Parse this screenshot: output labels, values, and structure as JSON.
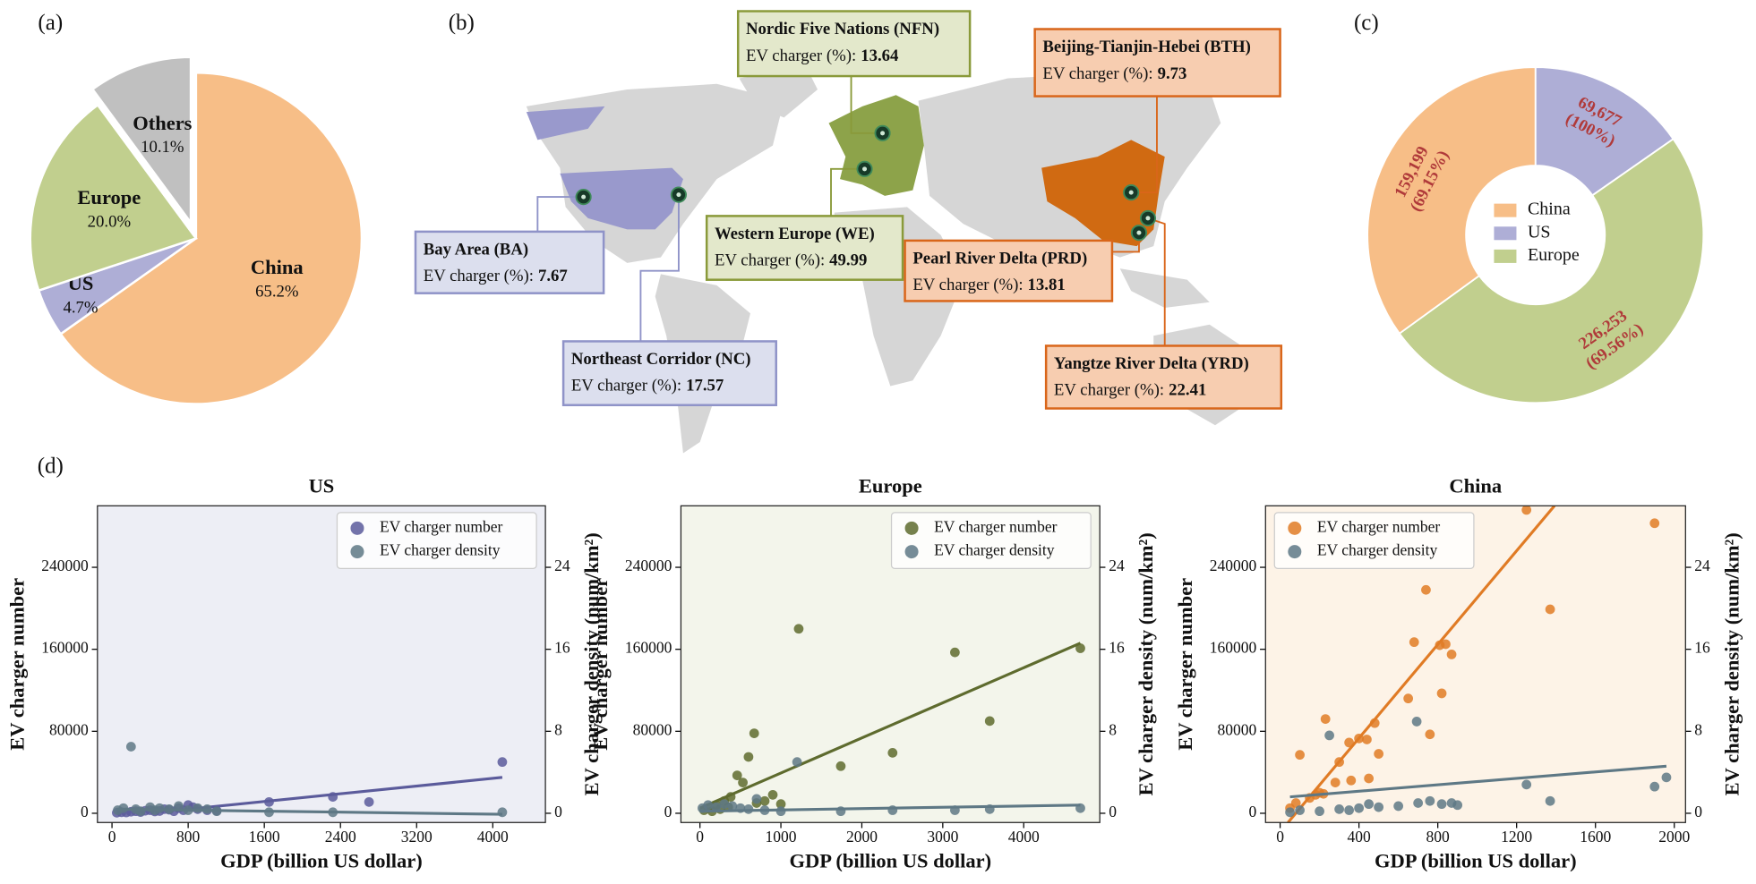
{
  "chart_data": [
    {
      "type": "pie",
      "panel": "(a)",
      "categories": [
        "China",
        "US",
        "Europe",
        "Others"
      ],
      "values": [
        65.2,
        4.7,
        20.0,
        10.1
      ],
      "value_labels": [
        "65.2%",
        "4.7%",
        "20.0%",
        "10.1%"
      ],
      "colors": [
        "#f7be87",
        "#aeaed6",
        "#c1cf8e",
        "#c0c0c0"
      ],
      "explode": [
        0,
        0,
        0,
        0.1
      ]
    },
    {
      "type": "map",
      "panel": "(b)",
      "regions": [
        {
          "name": "Nordic Five Nations (NFN)",
          "label": "EV charger (%):",
          "value": 13.64,
          "color": "#8a9a3a",
          "box_fill": "#e3e8cb"
        },
        {
          "name": "Beijing-Tianjin-Hebei (BTH)",
          "label": "EV charger (%):",
          "value": 9.73,
          "color": "#d9661a",
          "box_fill": "#f7cdb0"
        },
        {
          "name": "Bay Area (BA)",
          "label": "EV charger (%):",
          "value": 7.67,
          "color": "#8f93c8",
          "box_fill": "#dcdfee"
        },
        {
          "name": "Western Europe (WE)",
          "label": "EV charger (%):",
          "value": 49.99,
          "color": "#8a9a3a",
          "box_fill": "#e3e8cb"
        },
        {
          "name": "Pearl River Delta (PRD)",
          "label": "EV charger (%):",
          "value": 13.81,
          "color": "#d9661a",
          "box_fill": "#f7cdb0"
        },
        {
          "name": "Northeast Corridor (NC)",
          "label": "EV charger (%):",
          "value": 17.57,
          "color": "#8f93c8",
          "box_fill": "#dcdfee"
        },
        {
          "name": "Yangtze River Delta (YRD)",
          "label": "EV charger (%):",
          "value": 22.41,
          "color": "#d9661a",
          "box_fill": "#f7cdb0"
        }
      ]
    },
    {
      "type": "donut",
      "panel": "(c)",
      "categories": [
        "China",
        "US",
        "Europe"
      ],
      "values": [
        159199,
        69677,
        226253
      ],
      "value_labels": [
        "159,199",
        "69,677",
        "226,253"
      ],
      "percent_labels": [
        "(69.15%)",
        "(100%)",
        "(69.56%)"
      ],
      "colors": [
        "#f7be87",
        "#aeaed6",
        "#c1cf8e"
      ],
      "label_color": "#b03a3a",
      "order": [
        "US",
        "Europe",
        "China"
      ]
    },
    {
      "type": "scatter",
      "panel": "(d)",
      "title": "US",
      "xlabel": "GDP (billion US dollar)",
      "ylabel": "EV charger number",
      "y2label": "EV charger density (num/km²)",
      "background": "#edeef5",
      "legend": "upper right",
      "xlim": [
        -153,
        4553
      ],
      "ylim": [
        -9000,
        300000
      ],
      "y2lim": [
        -0.9,
        30
      ],
      "xticks": [
        0,
        800,
        1600,
        2400,
        3200,
        4000
      ],
      "yticks": [
        0,
        80000,
        160000,
        240000
      ],
      "y2ticks": [
        0,
        8,
        16,
        24
      ],
      "series": [
        {
          "name": "EV charger number",
          "color": "#5b5b9b",
          "x": [
            50,
            100,
            150,
            200,
            250,
            300,
            350,
            400,
            450,
            500,
            550,
            600,
            650,
            700,
            750,
            800,
            850,
            900,
            1000,
            1100,
            1650,
            2320,
            2700,
            4100
          ],
          "values": [
            500,
            1000,
            800,
            1500,
            2000,
            1200,
            2500,
            3000,
            1800,
            2200,
            4000,
            3500,
            2000,
            5000,
            3000,
            8000,
            6000,
            4000,
            3000,
            2500,
            11000,
            16000,
            11000,
            50000
          ],
          "fit_x": [
            800,
            4100
          ],
          "fit_values": [
            4000,
            35000
          ]
        },
        {
          "name": "EV charger density",
          "color": "#5e7885",
          "axis": "y2",
          "x": [
            60,
            120,
            200,
            250,
            300,
            400,
            450,
            500,
            600,
            700,
            800,
            900,
            1000,
            1100,
            1650,
            2320,
            4100
          ],
          "values": [
            0.3,
            0.5,
            6.5,
            0.4,
            0.2,
            0.6,
            0.3,
            0.5,
            0.4,
            0.7,
            0.3,
            0.5,
            0.4,
            0.2,
            0.1,
            0.1,
            0.1
          ],
          "fit_x": [
            50,
            4100
          ],
          "fit_values": [
            0.4,
            -0.1
          ]
        }
      ]
    },
    {
      "type": "scatter",
      "title": "Europe",
      "xlabel": "GDP (billion US dollar)",
      "ylabel": "EV charger number",
      "y2label": "EV charger density (num/km²)",
      "background": "#f3f5eb",
      "legend": "upper right",
      "xlim": [
        -235,
        4940
      ],
      "ylim": [
        -9000,
        300000
      ],
      "y2lim": [
        -0.9,
        30
      ],
      "xticks": [
        0,
        1000,
        2000,
        3000,
        4000
      ],
      "yticks": [
        0,
        80000,
        160000,
        240000
      ],
      "y2ticks": [
        0,
        8,
        16,
        24
      ],
      "series": [
        {
          "name": "EV charger number",
          "color": "#5e6b2e",
          "x": [
            1220,
            3150,
            4700,
            3580,
            670,
            600,
            460,
            530,
            380,
            2380,
            1740,
            900,
            300,
            200,
            100,
            50,
            150,
            250,
            350,
            700,
            800,
            1000
          ],
          "values": [
            180000,
            157000,
            161000,
            90000,
            78000,
            55000,
            37000,
            30000,
            16000,
            59000,
            46000,
            18000,
            12000,
            8000,
            5000,
            3000,
            2000,
            4000,
            6000,
            10000,
            12000,
            9000
          ],
          "fit_x": [
            0,
            4700
          ],
          "fit_values": [
            5000,
            166000
          ]
        },
        {
          "name": "EV charger density",
          "color": "#5e7885",
          "axis": "y2",
          "x": [
            1200,
            30,
            100,
            200,
            300,
            400,
            500,
            600,
            800,
            1000,
            1740,
            2380,
            3150,
            3580,
            4700,
            700
          ],
          "values": [
            5.0,
            0.5,
            0.8,
            0.6,
            0.9,
            0.7,
            0.5,
            0.4,
            0.3,
            0.2,
            0.2,
            0.3,
            0.3,
            0.4,
            0.5,
            1.4
          ],
          "fit_x": [
            0,
            4700
          ],
          "fit_values": [
            0.2,
            0.8
          ]
        }
      ]
    },
    {
      "type": "scatter",
      "title": "China",
      "xlabel": "GDP (billion US dollar)",
      "ylabel": "EV charger number",
      "y2label": "EV charger density (num/km²)",
      "background": "#fdf3e7",
      "legend": "upper left",
      "xlim": [
        -74,
        2057
      ],
      "ylim": [
        -9000,
        300000
      ],
      "y2lim": [
        -0.9,
        30
      ],
      "xticks": [
        0,
        400,
        800,
        1200,
        1600,
        2000
      ],
      "yticks": [
        0,
        80000,
        160000,
        240000
      ],
      "y2ticks": [
        0,
        8,
        16,
        24
      ],
      "series": [
        {
          "name": "EV charger number",
          "color": "#e07b25",
          "x": [
            1250,
            1900,
            740,
            1370,
            680,
            840,
            810,
            870,
            820,
            650,
            230,
            480,
            400,
            440,
            350,
            100,
            300,
            760,
            450,
            360,
            280,
            200,
            150,
            50,
            80,
            180,
            220,
            500
          ],
          "values": [
            296000,
            283000,
            218000,
            199000,
            167000,
            165000,
            164000,
            155000,
            117000,
            112000,
            92000,
            88000,
            73000,
            72000,
            69000,
            57000,
            50000,
            77000,
            34000,
            32000,
            30000,
            20000,
            15000,
            5000,
            10000,
            18000,
            19000,
            58000
          ],
          "fit_x": [
            40,
            1392
          ],
          "fit_values": [
            -9000,
            300000
          ]
        },
        {
          "name": "EV charger density",
          "color": "#5e7885",
          "axis": "y2",
          "x": [
            693,
            250,
            1960,
            1900,
            1370,
            1250,
            900,
            870,
            820,
            760,
            700,
            500,
            450,
            400,
            350,
            300,
            200,
            100,
            50,
            600
          ],
          "values": [
            8.95,
            7.6,
            3.5,
            2.6,
            1.2,
            2.8,
            0.8,
            1.0,
            0.9,
            1.2,
            1.0,
            0.6,
            0.9,
            0.5,
            0.3,
            0.4,
            0.2,
            0.3,
            0.1,
            0.7
          ],
          "fit_x": [
            50,
            1960
          ],
          "fit_values": [
            1.6,
            4.6
          ]
        }
      ]
    }
  ]
}
